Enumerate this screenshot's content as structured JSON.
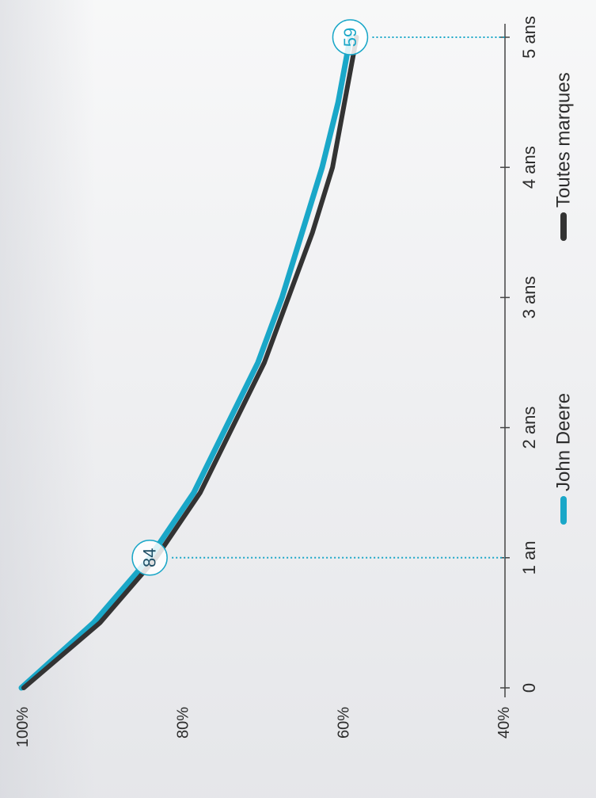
{
  "chart_data": {
    "type": "line",
    "orientation": "rotated-90-clockwise",
    "x": [
      0,
      0.5,
      1,
      1.5,
      2,
      2.5,
      3,
      3.5,
      4,
      4.5,
      5
    ],
    "x_ticks": [
      {
        "value": 0,
        "label": "0"
      },
      {
        "value": 1,
        "label": "1 an"
      },
      {
        "value": 2,
        "label": "2 ans"
      },
      {
        "value": 3,
        "label": "3 ans"
      },
      {
        "value": 4,
        "label": "4 ans"
      },
      {
        "value": 5,
        "label": "5 ans"
      }
    ],
    "y_ticks": [
      {
        "value": 40,
        "label": "40%"
      },
      {
        "value": 60,
        "label": "60%"
      },
      {
        "value": 80,
        "label": "80%"
      },
      {
        "value": 100,
        "label": "100%"
      }
    ],
    "xlim": [
      0,
      5
    ],
    "ylim": [
      40,
      100
    ],
    "series": [
      {
        "name": "John Deere",
        "color": "#1aa7c8",
        "values": [
          100,
          91,
          84,
          78.5,
          74.5,
          70.5,
          67.5,
          65,
          62.5,
          60.5,
          59
        ]
      },
      {
        "name": "Toutes marques",
        "color": "#333333",
        "values": [
          100,
          90.5,
          83.5,
          78,
          74,
          70,
          67,
          64,
          61.5,
          60,
          58.5
        ]
      }
    ],
    "annotations": [
      {
        "x": 1,
        "y": 84,
        "label": "84"
      },
      {
        "x": 5,
        "y": 59,
        "label": "59"
      }
    ],
    "legend_position": "bottom",
    "grid": false
  }
}
